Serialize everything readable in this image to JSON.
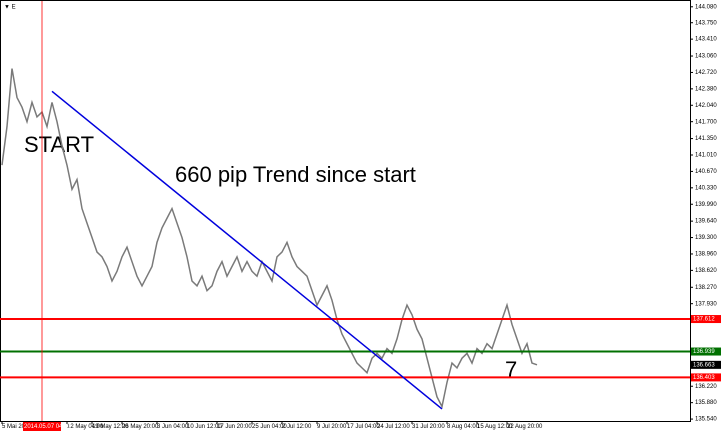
{
  "chart_data": {
    "type": "line",
    "corner_label": "▼ E",
    "categories": [
      "5 Mai 2014",
      null,
      null,
      null,
      null,
      null,
      null,
      null,
      null,
      null,
      null,
      null,
      null,
      "12 May 04:00",
      null,
      null,
      null,
      null,
      "19 May 12:00",
      null,
      null,
      null,
      null,
      null,
      "26 May 20:00",
      null,
      null,
      null,
      null,
      null,
      null,
      "3 Jun 04:00",
      null,
      null,
      null,
      null,
      null,
      "10 Jun 12:00",
      null,
      null,
      null,
      null,
      null,
      "17 Jun 20:00",
      null,
      null,
      null,
      null,
      null,
      null,
      "25 Jun 04:00",
      null,
      null,
      null,
      null,
      null,
      "2 Jul 12:00",
      null,
      null,
      null,
      null,
      null,
      null,
      "9 Jul 20:00",
      null,
      null,
      null,
      null,
      null,
      "17 Jul 04:00",
      null,
      null,
      null,
      null,
      null,
      "24 Jul 12:00",
      null,
      null,
      null,
      null,
      null,
      null,
      "31 Jul 20:00",
      null,
      null,
      null,
      null,
      null,
      null,
      "8 Aug 04:00",
      null,
      null,
      null,
      null,
      null,
      "15 Aug 12:00",
      null,
      null,
      null,
      null,
      null,
      "22 Aug 20:00",
      null,
      null,
      null,
      null,
      null,
      null
    ],
    "series": [
      {
        "color": "#7a7a7a",
        "values": [
          140.8,
          141.6,
          142.8,
          142.2,
          142.0,
          141.7,
          142.1,
          141.8,
          141.9,
          141.6,
          142.1,
          141.7,
          141.2,
          140.8,
          140.3,
          140.5,
          139.9,
          139.6,
          139.3,
          139.0,
          138.9,
          138.7,
          138.4,
          138.6,
          138.9,
          139.1,
          138.8,
          138.5,
          138.3,
          138.5,
          138.7,
          139.2,
          139.5,
          139.7,
          139.9,
          139.6,
          139.3,
          138.9,
          138.4,
          138.3,
          138.5,
          138.2,
          138.3,
          138.6,
          138.8,
          138.5,
          138.7,
          138.9,
          138.6,
          138.8,
          138.6,
          138.5,
          138.8,
          138.6,
          138.4,
          138.9,
          139.0,
          139.2,
          138.9,
          138.7,
          138.6,
          138.5,
          138.2,
          137.9,
          138.1,
          138.3,
          138.0,
          137.6,
          137.3,
          137.1,
          136.9,
          136.7,
          136.6,
          136.5,
          136.8,
          136.9,
          136.8,
          137.0,
          136.9,
          137.2,
          137.6,
          137.9,
          137.7,
          137.4,
          137.2,
          136.8,
          136.4,
          136.0,
          135.8,
          136.3,
          136.7,
          136.6,
          136.8,
          136.9,
          136.7,
          137.0,
          136.9,
          137.1,
          137.0,
          137.3,
          137.6,
          137.9,
          137.5,
          137.2,
          136.9,
          137.1,
          136.7,
          136.663
        ]
      }
    ],
    "ylim": [
      135.5,
      144.2
    ],
    "yticks": [
      {
        "value": 144.08,
        "label": "144.080"
      },
      {
        "value": 143.75,
        "label": "143.750"
      },
      {
        "value": 143.41,
        "label": "143.410"
      },
      {
        "value": 143.06,
        "label": "143.060"
      },
      {
        "value": 142.72,
        "label": "142.720"
      },
      {
        "value": 142.38,
        "label": "142.380"
      },
      {
        "value": 142.04,
        "label": "142.040"
      },
      {
        "value": 141.7,
        "label": "141.700"
      },
      {
        "value": 141.35,
        "label": "141.350"
      },
      {
        "value": 141.01,
        "label": "141.010"
      },
      {
        "value": 140.67,
        "label": "140.670"
      },
      {
        "value": 140.33,
        "label": "140.330"
      },
      {
        "value": 139.99,
        "label": "139.990"
      },
      {
        "value": 139.64,
        "label": "139.640"
      },
      {
        "value": 139.3,
        "label": "139.300"
      },
      {
        "value": 138.96,
        "label": "138.960"
      },
      {
        "value": 138.62,
        "label": "138.620"
      },
      {
        "value": 138.27,
        "label": "138.270"
      },
      {
        "value": 137.93,
        "label": "137.930"
      },
      {
        "value": 136.22,
        "label": "136.220"
      },
      {
        "value": 135.88,
        "label": "135.880"
      },
      {
        "value": 135.54,
        "label": "135.540"
      }
    ],
    "grid": false,
    "hlines": [
      {
        "value": 137.612,
        "label": "137.612",
        "color": "#ff0000"
      },
      {
        "value": 136.939,
        "label": "136.939",
        "color": "#007000"
      },
      {
        "value": 136.403,
        "label": "136.403",
        "color": "#ff0000"
      }
    ],
    "price_label": {
      "value": 136.663,
      "label": "136.663"
    },
    "vline": {
      "index": 8,
      "label": "2014.05.07 04:00",
      "color": "#ff0000"
    },
    "trendline": {
      "start_index": 10,
      "start_price": 142.33,
      "end_index": 88,
      "end_price": 135.75,
      "color": "#0000dd"
    },
    "annotations": [
      "START",
      "660 pip Trend since start",
      "7"
    ]
  }
}
